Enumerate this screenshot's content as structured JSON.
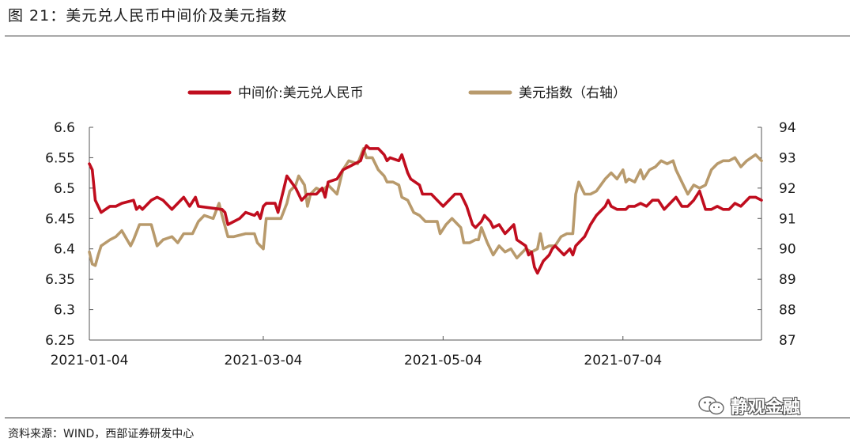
{
  "figure": {
    "title": "图 21：美元兑人民币中间价及美元指数",
    "source": "资料来源：WIND，西部证券研发中心",
    "watermark": "静观金融"
  },
  "chart_data": {
    "type": "line",
    "title": "",
    "legend_position": "top",
    "grid": false,
    "x_ticks": [
      "2021-01-04",
      "2021-03-04",
      "2021-05-04",
      "2021-07-04"
    ],
    "x_range": [
      "2021-01-04",
      "2021-08-20"
    ],
    "y_left": {
      "label": "",
      "range": [
        6.25,
        6.6
      ],
      "ticks": [
        "6.6",
        "6.55",
        "6.5",
        "6.45",
        "6.4",
        "6.35",
        "6.3",
        "6.25"
      ]
    },
    "y_right": {
      "label": "",
      "range": [
        87,
        94
      ],
      "ticks": [
        "94",
        "93",
        "92",
        "91",
        "90",
        "89",
        "88",
        "87"
      ]
    },
    "series": [
      {
        "name": "中间价:美元兑人民币",
        "axis": "left",
        "color": "#c00d1e",
        "points": [
          [
            "2021-01-04",
            6.54
          ],
          [
            "2021-01-05",
            6.53
          ],
          [
            "2021-01-06",
            6.48
          ],
          [
            "2021-01-07",
            6.47
          ],
          [
            "2021-01-08",
            6.46
          ],
          [
            "2021-01-11",
            6.47
          ],
          [
            "2021-01-13",
            6.47
          ],
          [
            "2021-01-15",
            6.475
          ],
          [
            "2021-01-19",
            6.48
          ],
          [
            "2021-01-20",
            6.465
          ],
          [
            "2021-01-21",
            6.47
          ],
          [
            "2021-01-22",
            6.465
          ],
          [
            "2021-01-25",
            6.48
          ],
          [
            "2021-01-27",
            6.485
          ],
          [
            "2021-01-29",
            6.48
          ],
          [
            "2021-02-01",
            6.465
          ],
          [
            "2021-02-03",
            6.475
          ],
          [
            "2021-02-05",
            6.485
          ],
          [
            "2021-02-07",
            6.47
          ],
          [
            "2021-02-09",
            6.485
          ],
          [
            "2021-02-10",
            6.47
          ],
          [
            "2021-02-18",
            6.465
          ],
          [
            "2021-02-19",
            6.46
          ],
          [
            "2021-02-20",
            6.44
          ],
          [
            "2021-02-22",
            6.445
          ],
          [
            "2021-02-24",
            6.45
          ],
          [
            "2021-02-26",
            6.46
          ],
          [
            "2021-03-01",
            6.455
          ],
          [
            "2021-03-02",
            6.46
          ],
          [
            "2021-03-03",
            6.45
          ],
          [
            "2021-03-04",
            6.47
          ],
          [
            "2021-03-05",
            6.475
          ],
          [
            "2021-03-08",
            6.475
          ],
          [
            "2021-03-09",
            6.46
          ],
          [
            "2021-03-10",
            6.48
          ],
          [
            "2021-03-11",
            6.5
          ],
          [
            "2021-03-12",
            6.52
          ],
          [
            "2021-03-15",
            6.5
          ],
          [
            "2021-03-17",
            6.48
          ],
          [
            "2021-03-19",
            6.49
          ],
          [
            "2021-03-22",
            6.49
          ],
          [
            "2021-03-24",
            6.5
          ],
          [
            "2021-03-25",
            6.485
          ],
          [
            "2021-03-26",
            6.51
          ],
          [
            "2021-03-29",
            6.515
          ],
          [
            "2021-03-31",
            6.53
          ],
          [
            "2021-04-02",
            6.535
          ],
          [
            "2021-04-06",
            6.545
          ],
          [
            "2021-04-07",
            6.56
          ],
          [
            "2021-04-08",
            6.57
          ],
          [
            "2021-04-09",
            6.565
          ],
          [
            "2021-04-12",
            6.565
          ],
          [
            "2021-04-14",
            6.555
          ],
          [
            "2021-04-15",
            6.545
          ],
          [
            "2021-04-16",
            6.55
          ],
          [
            "2021-04-19",
            6.545
          ],
          [
            "2021-04-20",
            6.555
          ],
          [
            "2021-04-22",
            6.525
          ],
          [
            "2021-04-23",
            6.515
          ],
          [
            "2021-04-26",
            6.505
          ],
          [
            "2021-04-27",
            6.49
          ],
          [
            "2021-04-30",
            6.49
          ],
          [
            "2021-05-04",
            6.47
          ],
          [
            "2021-05-06",
            6.48
          ],
          [
            "2021-05-08",
            6.49
          ],
          [
            "2021-05-10",
            6.49
          ],
          [
            "2021-05-12",
            6.47
          ],
          [
            "2021-05-14",
            6.44
          ],
          [
            "2021-05-15",
            6.435
          ],
          [
            "2021-05-17",
            6.445
          ],
          [
            "2021-05-18",
            6.455
          ],
          [
            "2021-05-20",
            6.445
          ],
          [
            "2021-05-21",
            6.435
          ],
          [
            "2021-05-23",
            6.44
          ],
          [
            "2021-05-25",
            6.425
          ],
          [
            "2021-05-26",
            6.43
          ],
          [
            "2021-05-28",
            6.44
          ],
          [
            "2021-05-29",
            6.415
          ],
          [
            "2021-06-01",
            6.405
          ],
          [
            "2021-06-02",
            6.39
          ],
          [
            "2021-06-03",
            6.395
          ],
          [
            "2021-06-04",
            6.37
          ],
          [
            "2021-06-05",
            6.36
          ],
          [
            "2021-06-07",
            6.38
          ],
          [
            "2021-06-08",
            6.385
          ],
          [
            "2021-06-09",
            6.39
          ],
          [
            "2021-06-10",
            6.4
          ],
          [
            "2021-06-11",
            6.405
          ],
          [
            "2021-06-14",
            6.39
          ],
          [
            "2021-06-15",
            6.395
          ],
          [
            "2021-06-16",
            6.4
          ],
          [
            "2021-06-17",
            6.39
          ],
          [
            "2021-06-18",
            6.405
          ],
          [
            "2021-06-21",
            6.42
          ],
          [
            "2021-06-23",
            6.44
          ],
          [
            "2021-06-25",
            6.455
          ],
          [
            "2021-06-28",
            6.47
          ],
          [
            "2021-06-29",
            6.48
          ],
          [
            "2021-06-30",
            6.47
          ],
          [
            "2021-07-02",
            6.465
          ],
          [
            "2021-07-05",
            6.465
          ],
          [
            "2021-07-06",
            6.47
          ],
          [
            "2021-07-08",
            6.47
          ],
          [
            "2021-07-10",
            6.475
          ],
          [
            "2021-07-12",
            6.47
          ],
          [
            "2021-07-14",
            6.48
          ],
          [
            "2021-07-16",
            6.48
          ],
          [
            "2021-07-18",
            6.465
          ],
          [
            "2021-07-20",
            6.475
          ],
          [
            "2021-07-22",
            6.485
          ],
          [
            "2021-07-24",
            6.47
          ],
          [
            "2021-07-26",
            6.47
          ],
          [
            "2021-07-28",
            6.48
          ],
          [
            "2021-07-30",
            6.495
          ],
          [
            "2021-08-01",
            6.465
          ],
          [
            "2021-08-03",
            6.465
          ],
          [
            "2021-08-05",
            6.47
          ],
          [
            "2021-08-07",
            6.465
          ],
          [
            "2021-08-09",
            6.465
          ],
          [
            "2021-08-11",
            6.475
          ],
          [
            "2021-08-13",
            6.47
          ],
          [
            "2021-08-16",
            6.485
          ],
          [
            "2021-08-18",
            6.485
          ],
          [
            "2021-08-20",
            6.48
          ]
        ]
      },
      {
        "name": "美元指数（右轴）",
        "axis": "right",
        "color": "#b89a6c",
        "points": [
          [
            "2021-01-04",
            89.9
          ],
          [
            "2021-01-05",
            89.5
          ],
          [
            "2021-01-06",
            89.45
          ],
          [
            "2021-01-07",
            89.8
          ],
          [
            "2021-01-08",
            90.1
          ],
          [
            "2021-01-11",
            90.3
          ],
          [
            "2021-01-13",
            90.4
          ],
          [
            "2021-01-15",
            90.6
          ],
          [
            "2021-01-18",
            90.1
          ],
          [
            "2021-01-19",
            90.3
          ],
          [
            "2021-01-21",
            90.8
          ],
          [
            "2021-01-22",
            90.8
          ],
          [
            "2021-01-25",
            90.8
          ],
          [
            "2021-01-27",
            90.1
          ],
          [
            "2021-01-29",
            90.3
          ],
          [
            "2021-02-01",
            90.4
          ],
          [
            "2021-02-03",
            90.2
          ],
          [
            "2021-02-05",
            90.5
          ],
          [
            "2021-02-08",
            90.5
          ],
          [
            "2021-02-10",
            90.9
          ],
          [
            "2021-02-12",
            91.1
          ],
          [
            "2021-02-15",
            91.0
          ],
          [
            "2021-02-17",
            91.5
          ],
          [
            "2021-02-18",
            91.1
          ],
          [
            "2021-02-20",
            90.4
          ],
          [
            "2021-02-22",
            90.4
          ],
          [
            "2021-02-26",
            90.5
          ],
          [
            "2021-03-01",
            90.5
          ],
          [
            "2021-03-02",
            90.2
          ],
          [
            "2021-03-03",
            90.1
          ],
          [
            "2021-03-04",
            90.0
          ],
          [
            "2021-03-05",
            91.0
          ],
          [
            "2021-03-08",
            91.0
          ],
          [
            "2021-03-10",
            91.0
          ],
          [
            "2021-03-12",
            91.5
          ],
          [
            "2021-03-13",
            91.9
          ],
          [
            "2021-03-15",
            92.1
          ],
          [
            "2021-03-16",
            92.4
          ],
          [
            "2021-03-18",
            92.1
          ],
          [
            "2021-03-19",
            91.4
          ],
          [
            "2021-03-20",
            91.8
          ],
          [
            "2021-03-22",
            92.0
          ],
          [
            "2021-03-24",
            91.9
          ],
          [
            "2021-03-26",
            92.1
          ],
          [
            "2021-03-29",
            91.8
          ],
          [
            "2021-03-31",
            92.6
          ],
          [
            "2021-04-02",
            92.9
          ],
          [
            "2021-04-05",
            92.8
          ],
          [
            "2021-04-07",
            93.3
          ],
          [
            "2021-04-08",
            93.0
          ],
          [
            "2021-04-10",
            93.0
          ],
          [
            "2021-04-12",
            92.6
          ],
          [
            "2021-04-14",
            92.4
          ],
          [
            "2021-04-15",
            92.2
          ],
          [
            "2021-04-17",
            92.2
          ],
          [
            "2021-04-19",
            92.1
          ],
          [
            "2021-04-20",
            91.7
          ],
          [
            "2021-04-22",
            91.6
          ],
          [
            "2021-04-24",
            91.2
          ],
          [
            "2021-04-26",
            91.1
          ],
          [
            "2021-04-28",
            90.9
          ],
          [
            "2021-04-30",
            90.9
          ],
          [
            "2021-05-02",
            90.9
          ],
          [
            "2021-05-03",
            90.5
          ],
          [
            "2021-05-05",
            90.8
          ],
          [
            "2021-05-07",
            91.0
          ],
          [
            "2021-05-10",
            90.7
          ],
          [
            "2021-05-11",
            90.2
          ],
          [
            "2021-05-13",
            90.2
          ],
          [
            "2021-05-15",
            90.3
          ],
          [
            "2021-05-16",
            90.3
          ],
          [
            "2021-05-17",
            90.7
          ],
          [
            "2021-05-19",
            90.2
          ],
          [
            "2021-05-21",
            89.8
          ],
          [
            "2021-05-23",
            90.1
          ],
          [
            "2021-05-25",
            89.9
          ],
          [
            "2021-05-27",
            90.0
          ],
          [
            "2021-05-29",
            89.7
          ],
          [
            "2021-06-01",
            90.0
          ],
          [
            "2021-06-03",
            89.9
          ],
          [
            "2021-06-05",
            90.0
          ],
          [
            "2021-06-06",
            90.5
          ],
          [
            "2021-06-07",
            90.0
          ],
          [
            "2021-06-09",
            90.1
          ],
          [
            "2021-06-11",
            90.1
          ],
          [
            "2021-06-13",
            90.4
          ],
          [
            "2021-06-15",
            90.5
          ],
          [
            "2021-06-17",
            90.5
          ],
          [
            "2021-06-18",
            91.8
          ],
          [
            "2021-06-19",
            92.2
          ],
          [
            "2021-06-21",
            91.8
          ],
          [
            "2021-06-23",
            91.8
          ],
          [
            "2021-06-25",
            91.9
          ],
          [
            "2021-06-28",
            92.3
          ],
          [
            "2021-06-30",
            92.5
          ],
          [
            "2021-07-02",
            92.3
          ],
          [
            "2021-07-04",
            92.6
          ],
          [
            "2021-07-05",
            92.2
          ],
          [
            "2021-07-06",
            92.3
          ],
          [
            "2021-07-08",
            92.2
          ],
          [
            "2021-07-10",
            92.6
          ],
          [
            "2021-07-11",
            92.3
          ],
          [
            "2021-07-13",
            92.6
          ],
          [
            "2021-07-15",
            92.7
          ],
          [
            "2021-07-17",
            92.9
          ],
          [
            "2021-07-19",
            92.8
          ],
          [
            "2021-07-21",
            92.9
          ],
          [
            "2021-07-22",
            92.6
          ],
          [
            "2021-07-24",
            92.2
          ],
          [
            "2021-07-26",
            91.8
          ],
          [
            "2021-07-28",
            92.1
          ],
          [
            "2021-07-30",
            92.0
          ],
          [
            "2021-08-01",
            92.1
          ],
          [
            "2021-08-03",
            92.6
          ],
          [
            "2021-08-05",
            92.8
          ],
          [
            "2021-08-07",
            92.9
          ],
          [
            "2021-08-09",
            92.9
          ],
          [
            "2021-08-11",
            93.0
          ],
          [
            "2021-08-13",
            92.7
          ],
          [
            "2021-08-15",
            92.9
          ],
          [
            "2021-08-18",
            93.1
          ],
          [
            "2021-08-20",
            92.9
          ]
        ]
      }
    ]
  }
}
